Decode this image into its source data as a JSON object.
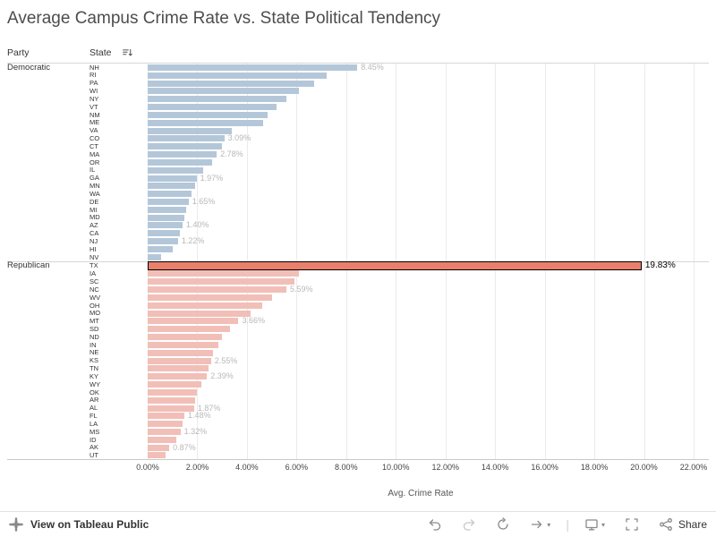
{
  "title": "Average Campus Crime Rate vs. State Political Tendency",
  "columns": {
    "party": "Party",
    "state": "State",
    "sort_icon": "sort-descending-icon"
  },
  "axis": {
    "title": "Avg. Crime Rate",
    "ticks": [
      "0.00%",
      "2.00%",
      "4.00%",
      "6.00%",
      "8.00%",
      "10.00%",
      "12.00%",
      "14.00%",
      "16.00%",
      "18.00%",
      "20.00%",
      "22.00%"
    ],
    "max": 22
  },
  "colors": {
    "democratic_bar": "#b4c7d9",
    "republican_bar": "#f1bfb7",
    "selected_bar": "#e8806b",
    "selected_border": "#000000",
    "value_label": "#b8b8b8",
    "selected_value_label": "#000000"
  },
  "chart_data": {
    "type": "bar",
    "orientation": "horizontal",
    "unit": "percent",
    "xlabel": "Avg. Crime Rate",
    "xlim": [
      0,
      22
    ],
    "grid": true,
    "selected_state": "TX",
    "groups": [
      {
        "party": "Democratic",
        "color": "#b4c7d9",
        "states": [
          {
            "state": "NH",
            "value": 8.45,
            "label": "8.45%"
          },
          {
            "state": "RI",
            "value": 7.2
          },
          {
            "state": "PA",
            "value": 6.7
          },
          {
            "state": "WI",
            "value": 6.1
          },
          {
            "state": "NY",
            "value": 5.6
          },
          {
            "state": "VT",
            "value": 5.2
          },
          {
            "state": "NM",
            "value": 4.85
          },
          {
            "state": "ME",
            "value": 4.65
          },
          {
            "state": "VA",
            "value": 3.4
          },
          {
            "state": "CO",
            "value": 3.09,
            "label": "3.09%"
          },
          {
            "state": "CT",
            "value": 3.0
          },
          {
            "state": "MA",
            "value": 2.78,
            "label": "2.78%"
          },
          {
            "state": "OR",
            "value": 2.6
          },
          {
            "state": "IL",
            "value": 2.25
          },
          {
            "state": "GA",
            "value": 1.97,
            "label": "1.97%"
          },
          {
            "state": "MN",
            "value": 1.9
          },
          {
            "state": "WA",
            "value": 1.78
          },
          {
            "state": "DE",
            "value": 1.65,
            "label": "1.65%"
          },
          {
            "state": "MI",
            "value": 1.55
          },
          {
            "state": "MD",
            "value": 1.47
          },
          {
            "state": "AZ",
            "value": 1.4,
            "label": "1.40%"
          },
          {
            "state": "CA",
            "value": 1.3
          },
          {
            "state": "NJ",
            "value": 1.22,
            "label": "1.22%"
          },
          {
            "state": "HI",
            "value": 1.0
          },
          {
            "state": "NV",
            "value": 0.55
          }
        ]
      },
      {
        "party": "Republican",
        "color": "#f1bfb7",
        "states": [
          {
            "state": "TX",
            "value": 19.83,
            "label": "19.83%",
            "selected": true
          },
          {
            "state": "IA",
            "value": 6.1
          },
          {
            "state": "SC",
            "value": 5.9
          },
          {
            "state": "NC",
            "value": 5.59,
            "label": "5.59%"
          },
          {
            "state": "WV",
            "value": 5.0
          },
          {
            "state": "OH",
            "value": 4.6
          },
          {
            "state": "MO",
            "value": 4.15
          },
          {
            "state": "MT",
            "value": 3.66,
            "label": "3.66%"
          },
          {
            "state": "SD",
            "value": 3.3
          },
          {
            "state": "ND",
            "value": 3.0
          },
          {
            "state": "IN",
            "value": 2.85
          },
          {
            "state": "NE",
            "value": 2.65
          },
          {
            "state": "KS",
            "value": 2.55,
            "label": "2.55%"
          },
          {
            "state": "TN",
            "value": 2.47
          },
          {
            "state": "KY",
            "value": 2.39,
            "label": "2.39%"
          },
          {
            "state": "WY",
            "value": 2.15
          },
          {
            "state": "OK",
            "value": 1.97
          },
          {
            "state": "AR",
            "value": 1.92
          },
          {
            "state": "AL",
            "value": 1.87,
            "label": "1.87%"
          },
          {
            "state": "FL",
            "value": 1.48,
            "label": "1.48%"
          },
          {
            "state": "LA",
            "value": 1.42
          },
          {
            "state": "MS",
            "value": 1.32,
            "label": "1.32%"
          },
          {
            "state": "ID",
            "value": 1.15
          },
          {
            "state": "AK",
            "value": 0.87,
            "label": "0.87%"
          },
          {
            "state": "UT",
            "value": 0.72
          }
        ]
      }
    ]
  },
  "toolbar": {
    "view_label": "View on Tableau Public",
    "share_label": "Share",
    "icons": [
      "tableau-logo-icon",
      "undo-icon",
      "redo-icon",
      "replay-icon",
      "autoplay-icon",
      "download-icon",
      "fullscreen-icon",
      "share-icon"
    ]
  }
}
